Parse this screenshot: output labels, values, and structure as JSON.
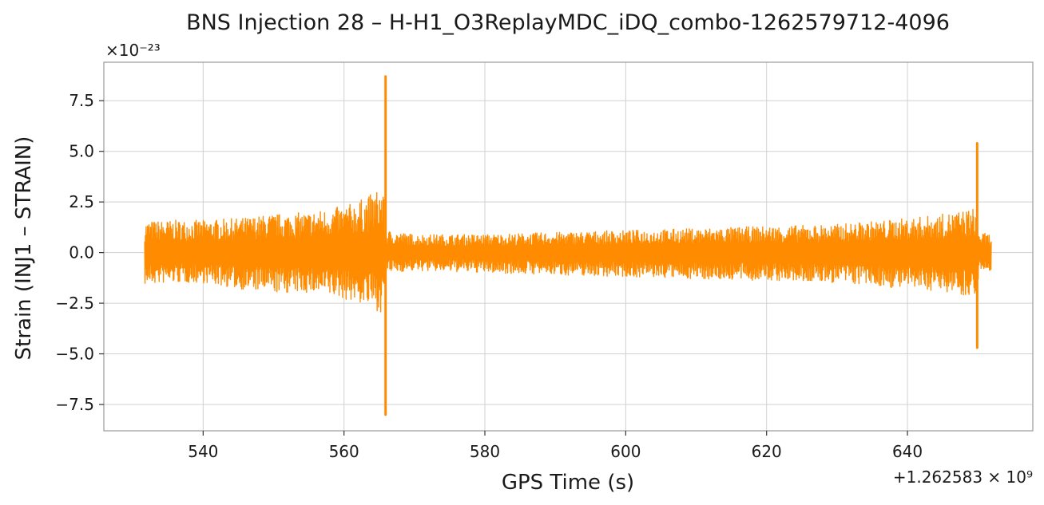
{
  "chart_data": {
    "type": "line",
    "title": "BNS Injection 28 – H-H1_O3ReplayMDC_iDQ_combo-1262579712-4096",
    "xlabel": "GPS Time (s)",
    "ylabel": "Strain (INJ1 – STRAIN)",
    "x_offset_label": "+1.262583 × 10⁹",
    "y_scale_label": "×10⁻²³",
    "xlim": [
      525.9,
      657.8
    ],
    "ylim": [
      -8.8,
      9.4
    ],
    "x_ticks": [
      540,
      560,
      580,
      600,
      620,
      640
    ],
    "x_tick_labels": [
      "540",
      "560",
      "580",
      "600",
      "620",
      "640"
    ],
    "y_ticks": [
      -7.5,
      -5.0,
      -2.5,
      0.0,
      2.5,
      5.0,
      7.5
    ],
    "y_tick_labels": [
      "−7.5",
      "−5.0",
      "−2.5",
      "0.0",
      "2.5",
      "5.0",
      "7.5"
    ],
    "grid": true,
    "series": [
      {
        "color": "#ff8c00",
        "x_range": [
          531.7,
          651.9
        ],
        "envelope": [
          {
            "x": 531.7,
            "upper": 1.55,
            "lower": -1.6
          },
          {
            "x": 536.0,
            "upper": 1.6,
            "lower": -1.5
          },
          {
            "x": 540.0,
            "upper": 1.6,
            "lower": -1.5
          },
          {
            "x": 545.0,
            "upper": 1.7,
            "lower": -1.8
          },
          {
            "x": 550.0,
            "upper": 1.9,
            "lower": -2.0
          },
          {
            "x": 555.0,
            "upper": 2.0,
            "lower": -2.0
          },
          {
            "x": 560.0,
            "upper": 2.3,
            "lower": -2.3
          },
          {
            "x": 563.0,
            "upper": 2.7,
            "lower": -2.6
          },
          {
            "x": 565.5,
            "upper": 3.3,
            "lower": -3.0
          },
          {
            "x": 566.0,
            "upper": 1.1,
            "lower": -1.0
          },
          {
            "x": 570.0,
            "upper": 0.9,
            "lower": -0.9
          },
          {
            "x": 580.0,
            "upper": 0.9,
            "lower": -1.0
          },
          {
            "x": 590.0,
            "upper": 1.0,
            "lower": -1.1
          },
          {
            "x": 600.0,
            "upper": 1.1,
            "lower": -1.2
          },
          {
            "x": 610.0,
            "upper": 1.2,
            "lower": -1.3
          },
          {
            "x": 620.0,
            "upper": 1.3,
            "lower": -1.4
          },
          {
            "x": 630.0,
            "upper": 1.4,
            "lower": -1.5
          },
          {
            "x": 640.0,
            "upper": 1.7,
            "lower": -1.8
          },
          {
            "x": 645.0,
            "upper": 1.9,
            "lower": -1.9
          },
          {
            "x": 649.6,
            "upper": 2.2,
            "lower": -2.2
          },
          {
            "x": 650.2,
            "upper": 1.0,
            "lower": -1.0
          },
          {
            "x": 651.9,
            "upper": 0.9,
            "lower": -0.9
          }
        ],
        "spikes": [
          {
            "x": 565.9,
            "max": 8.7,
            "min": -8.0
          },
          {
            "x": 649.9,
            "max": 5.4,
            "min": -4.7
          }
        ]
      }
    ]
  }
}
